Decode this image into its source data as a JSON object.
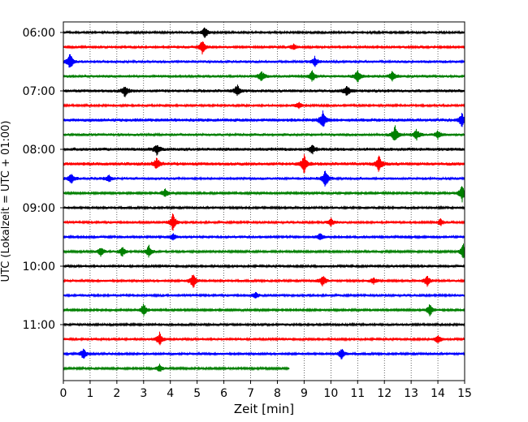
{
  "chart_data": {
    "type": "line",
    "title": "",
    "xlabel": "Zeit  [min]",
    "ylabel": "UTC (Lokalzeit = UTC + 01:00)",
    "xlim": [
      0,
      15
    ],
    "x_ticks": [
      0,
      1,
      2,
      3,
      4,
      5,
      6,
      7,
      8,
      9,
      10,
      11,
      12,
      13,
      14,
      15
    ],
    "y_tick_labels": [
      "06:00",
      "07:00",
      "08:00",
      "09:00",
      "10:00",
      "11:00"
    ],
    "y_tick_rows": [
      0,
      4,
      8,
      12,
      16,
      20
    ],
    "grid": "vertical-dotted",
    "color_cycle": [
      "#000000",
      "#ff0000",
      "#0000ff",
      "#008000"
    ],
    "rows": [
      {
        "start": "06:00",
        "duration_min": 15,
        "noise": 0.22,
        "events": [
          [
            5.3,
            1.0
          ]
        ]
      },
      {
        "start": "06:15",
        "duration_min": 15,
        "noise": 0.22,
        "events": [
          [
            5.2,
            1.3
          ],
          [
            8.6,
            0.5
          ]
        ]
      },
      {
        "start": "06:30",
        "duration_min": 15,
        "noise": 0.25,
        "events": [
          [
            0.25,
            1.4
          ],
          [
            9.4,
            0.8
          ]
        ]
      },
      {
        "start": "06:45",
        "duration_min": 15,
        "noise": 0.25,
        "events": [
          [
            7.4,
            1.0
          ],
          [
            9.3,
            1.0
          ],
          [
            11.0,
            1.1
          ],
          [
            12.3,
            0.8
          ]
        ]
      },
      {
        "start": "07:00",
        "duration_min": 15,
        "noise": 0.28,
        "events": [
          [
            2.3,
            0.9
          ],
          [
            6.5,
            0.9
          ],
          [
            10.6,
            0.9
          ]
        ]
      },
      {
        "start": "07:15",
        "duration_min": 15,
        "noise": 0.22,
        "events": [
          [
            8.8,
            0.6
          ]
        ]
      },
      {
        "start": "07:30",
        "duration_min": 15,
        "noise": 0.3,
        "events": [
          [
            9.7,
            1.5
          ],
          [
            14.9,
            1.1
          ]
        ]
      },
      {
        "start": "07:45",
        "duration_min": 15,
        "noise": 0.25,
        "events": [
          [
            12.4,
            1.4
          ],
          [
            13.2,
            0.9
          ],
          [
            14.0,
            0.7
          ]
        ]
      },
      {
        "start": "08:00",
        "duration_min": 15,
        "noise": 0.3,
        "events": [
          [
            3.5,
            0.9
          ],
          [
            9.3,
            0.8
          ]
        ]
      },
      {
        "start": "08:15",
        "duration_min": 15,
        "noise": 0.3,
        "events": [
          [
            3.5,
            1.0
          ],
          [
            9.0,
            1.6
          ],
          [
            11.8,
            1.4
          ]
        ]
      },
      {
        "start": "08:30",
        "duration_min": 15,
        "noise": 0.25,
        "events": [
          [
            0.3,
            0.9
          ],
          [
            1.7,
            0.6
          ],
          [
            9.8,
            1.6
          ]
        ]
      },
      {
        "start": "08:45",
        "duration_min": 15,
        "noise": 0.2,
        "events": [
          [
            3.8,
            0.8
          ],
          [
            14.9,
            1.6
          ]
        ]
      },
      {
        "start": "09:00",
        "duration_min": 15,
        "noise": 0.22,
        "events": []
      },
      {
        "start": "09:15",
        "duration_min": 15,
        "noise": 0.22,
        "events": [
          [
            4.1,
            1.6
          ],
          [
            10.0,
            0.7
          ],
          [
            14.1,
            0.6
          ]
        ]
      },
      {
        "start": "09:30",
        "duration_min": 15,
        "noise": 0.22,
        "events": [
          [
            4.1,
            0.6
          ],
          [
            9.6,
            0.6
          ]
        ]
      },
      {
        "start": "09:45",
        "duration_min": 15,
        "noise": 0.2,
        "events": [
          [
            1.4,
            0.8
          ],
          [
            2.2,
            0.9
          ],
          [
            3.2,
            1.1
          ],
          [
            14.95,
            1.3
          ]
        ]
      },
      {
        "start": "10:00",
        "duration_min": 15,
        "noise": 0.22,
        "events": []
      },
      {
        "start": "10:15",
        "duration_min": 15,
        "noise": 0.22,
        "events": [
          [
            4.85,
            1.3
          ],
          [
            9.7,
            0.9
          ],
          [
            11.6,
            0.6
          ],
          [
            13.6,
            0.9
          ]
        ]
      },
      {
        "start": "10:30",
        "duration_min": 15,
        "noise": 0.22,
        "events": [
          [
            7.2,
            0.5
          ]
        ]
      },
      {
        "start": "10:45",
        "duration_min": 15,
        "noise": 0.2,
        "events": [
          [
            3.0,
            1.2
          ],
          [
            13.7,
            1.0
          ]
        ]
      },
      {
        "start": "11:00",
        "duration_min": 15,
        "noise": 0.22,
        "events": []
      },
      {
        "start": "11:15",
        "duration_min": 15,
        "noise": 0.22,
        "events": [
          [
            3.6,
            1.2
          ],
          [
            14.0,
            0.7
          ]
        ]
      },
      {
        "start": "11:30",
        "duration_min": 15,
        "noise": 0.22,
        "events": [
          [
            0.75,
            0.9
          ],
          [
            10.4,
            0.9
          ]
        ]
      },
      {
        "start": "11:45",
        "duration_min": 8.45,
        "noise": 0.2,
        "events": [
          [
            3.6,
            0.7
          ]
        ]
      }
    ]
  }
}
